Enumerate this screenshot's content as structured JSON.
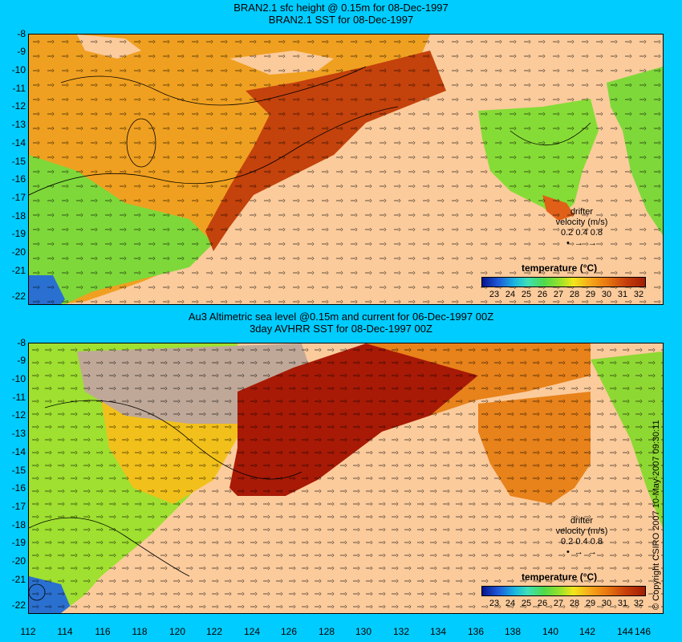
{
  "top_panel": {
    "title_line1": "BRAN2.1 sfc height @ 0.15m for 08-Dec-1997",
    "title_line2": "BRAN2.1 SST for 08-Dec-1997",
    "y_ticks": [
      "-8",
      "-9",
      "-10",
      "-11",
      "-12",
      "-13",
      "-14",
      "-15",
      "-16",
      "-17",
      "-18",
      "-19",
      "-20",
      "-21",
      "-22"
    ],
    "legend_title": "temperature (°C)",
    "colorbar_ticks": [
      "23",
      "24",
      "25",
      "26",
      "27",
      "28",
      "29",
      "30",
      "31",
      "32"
    ],
    "drifter_label": "drifter",
    "velocity_label": "velocity (m/s)",
    "velocity_scale": "0.2 0.4 0.8"
  },
  "bottom_panel": {
    "title_line1": "Au3 Altimetric sea level  @0.15m and current for 06-Dec-1997 00Z",
    "title_line2": "3day AVHRR SST for 08-Dec-1997 00Z",
    "y_ticks": [
      "-8",
      "-9",
      "-10",
      "-11",
      "-12",
      "-13",
      "-14",
      "-15",
      "-16",
      "-17",
      "-18",
      "-19",
      "-20",
      "-21",
      "-22"
    ],
    "legend_title": "temperature (°C)",
    "colorbar_ticks": [
      "23",
      "24",
      "25",
      "26",
      "27",
      "28",
      "29",
      "30",
      "31",
      "32"
    ],
    "drifter_label": "drifter",
    "velocity_label": "velocity (m/s)",
    "velocity_scale": "0.2 0.4 0.8"
  },
  "x_ticks": [
    "112",
    "114",
    "116",
    "118",
    "120",
    "122",
    "124",
    "126",
    "128",
    "130",
    "132",
    "134",
    "136",
    "138",
    "140",
    "142",
    "144",
    "146"
  ],
  "copyright": "© Copyright CSIRO 2007  10-May-2007 09:30:11",
  "colors": {
    "background": "#00ccff",
    "land": "#fbcb9c"
  }
}
